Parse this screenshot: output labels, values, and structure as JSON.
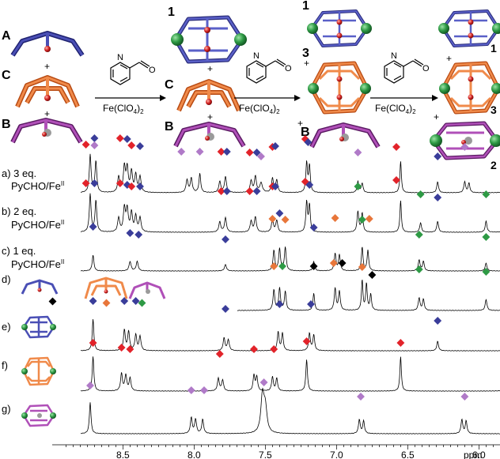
{
  "colors": {
    "blue": "#3a3d9a",
    "orange": "#e8763a",
    "purple": "#9d3c9e",
    "green": "#2e9a45",
    "red": "#e2232a",
    "black": "#000000",
    "violet": "#b07ac8"
  },
  "scheme": {
    "labels": {
      "A": "A",
      "C": "C",
      "B": "B",
      "one": "1",
      "three": "3",
      "two": "2",
      "plus": "+"
    },
    "reagent": {
      "prefix": "Fe(ClO",
      "sub1": "4",
      "mid": ")",
      "sub2": "2"
    }
  },
  "spectra": [
    {
      "id": "a",
      "label_line1": "a)  3 eq.",
      "label_line2": "PyCHO/Fe",
      "label_sup": "II"
    },
    {
      "id": "b",
      "label_line1": "b)  2 eq.",
      "label_line2": "PyCHO/Fe",
      "label_sup": "II"
    },
    {
      "id": "c",
      "label_line1": "c)  1 eq.",
      "label_line2": "PyCHO/Fe",
      "label_sup": "II"
    },
    {
      "id": "d",
      "label_line1": "d)",
      "label_line2": "",
      "label_sup": ""
    },
    {
      "id": "e",
      "label_line1": "e)",
      "label_line2": "",
      "label_sup": ""
    },
    {
      "id": "f",
      "label_line1": "f)",
      "label_line2": "",
      "label_sup": ""
    },
    {
      "id": "g",
      "label_line1": "g)",
      "label_line2": "",
      "label_sup": ""
    }
  ],
  "axis": {
    "ticks": [
      "8.5",
      "8.0",
      "7.5",
      "7.0",
      "6.5",
      "6.0"
    ],
    "unit": "ppm"
  }
}
